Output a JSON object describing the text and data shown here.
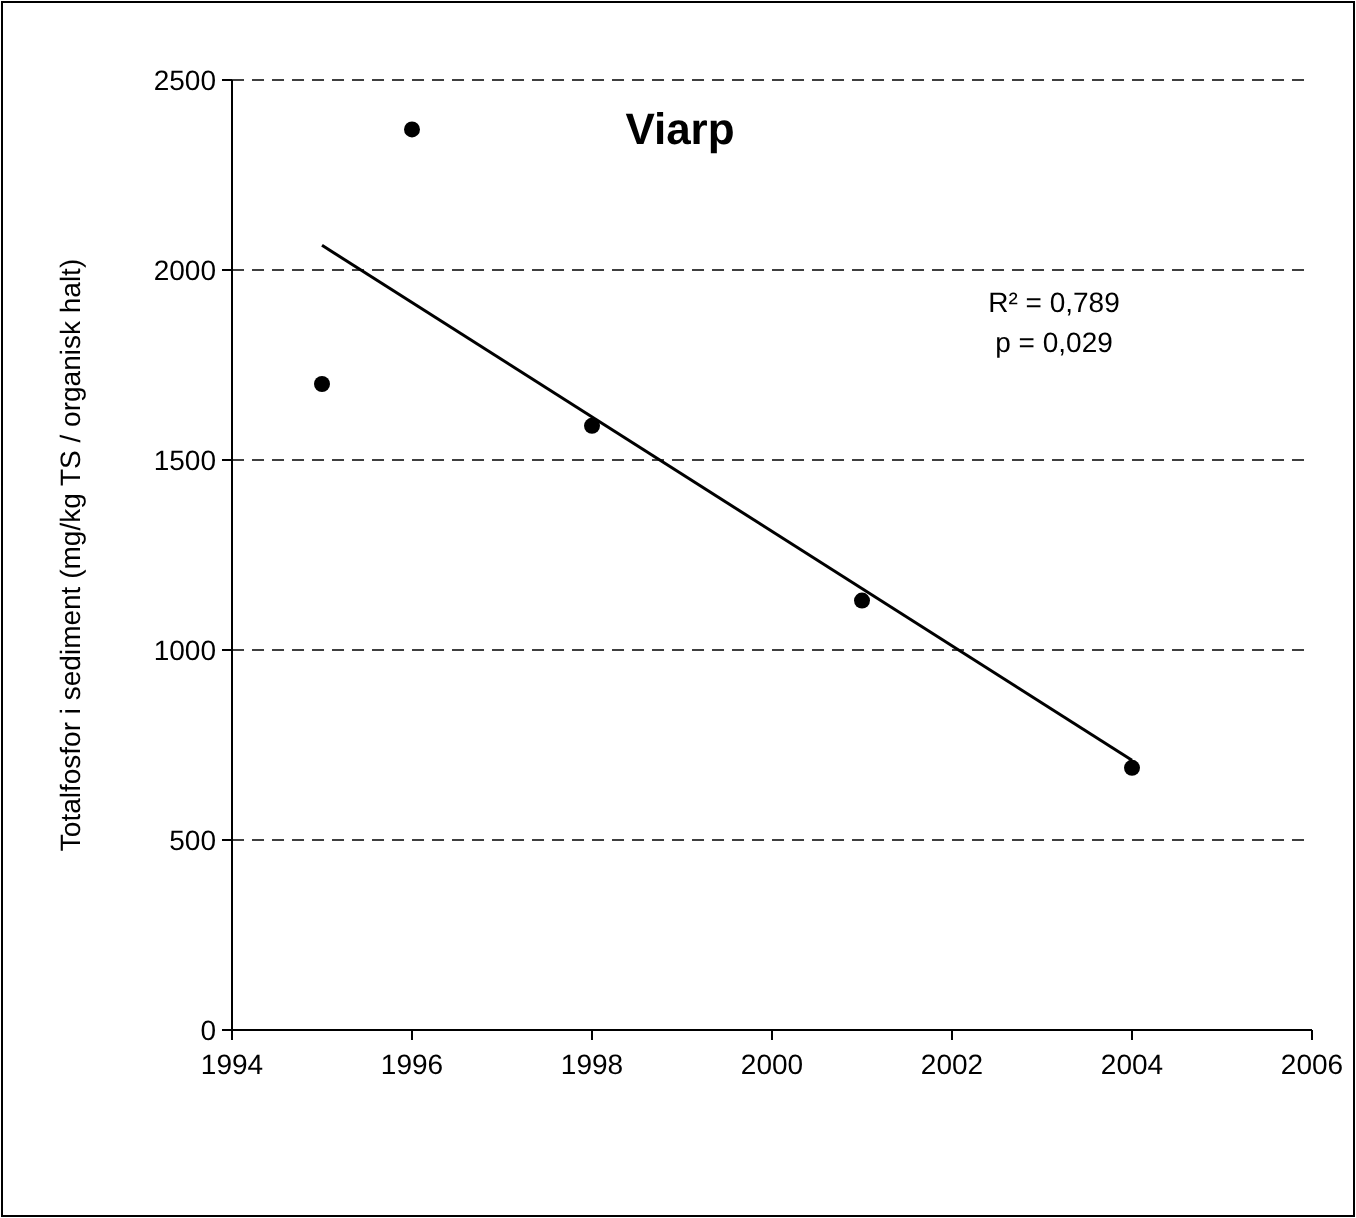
{
  "chart_data": {
    "type": "scatter",
    "title": "Viarp",
    "ylabel": "Totalfosfor i sediment (mg/kg TS / organisk halt)",
    "x": [
      1995,
      1996,
      1998,
      2001,
      2004
    ],
    "series": [
      {
        "color": "#000000",
        "marker": "circle",
        "values": [
          1700,
          2370,
          1590,
          1130,
          690
        ]
      },
      {
        "type": "line",
        "color": "#000000",
        "x": [
          1995,
          2004
        ],
        "values": [
          2065,
          710
        ],
        "line_style": "solid"
      }
    ],
    "annotations": [
      "R² = 0,789",
      "p = 0,029"
    ],
    "xlim": [
      1994,
      2006
    ],
    "xticks": [
      1994,
      1996,
      1998,
      2000,
      2002,
      2004,
      2006
    ],
    "ylim": [
      0,
      2500
    ],
    "yticks": [
      0,
      500,
      1000,
      1500,
      2000,
      2500
    ],
    "grid": "y"
  }
}
